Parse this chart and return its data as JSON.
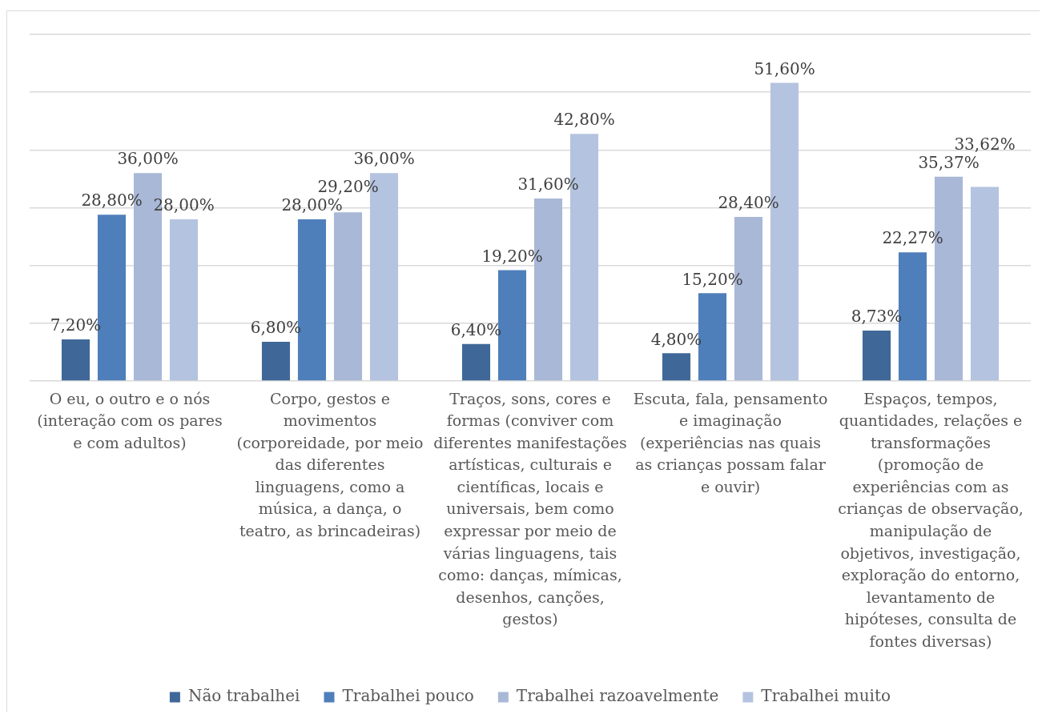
{
  "chart_data": {
    "type": "bar",
    "categories": [
      "O eu, o outro e o nós (interação com os pares e com adultos)",
      "Corpo, gestos e movimentos (corporeidade, por meio das diferentes linguagens, como a música, a dança, o teatro, as brincadeiras)",
      "Traços, sons, cores e formas (conviver com diferentes manifestações artísticas, culturais e científicas, locais e universais, bem como expressar por meio de várias linguagens, tais como: danças, mímicas, desenhos, canções, gestos)",
      "Escuta, fala, pensamento e imaginação (experiências nas quais as crianças possam falar e ouvir)",
      "Espaços, tempos, quantidades, relações e transformações (promoção de experiências com as crianças de observação, manipulação de objetivos, investigação, exploração do entorno, levantamento de hipóteses, consulta de fontes diversas)"
    ],
    "series": [
      {
        "name": "Não trabalhei",
        "color": "#3f6898",
        "values": [
          7.2,
          6.8,
          6.4,
          4.8,
          8.73
        ],
        "value_labels": [
          "7,20%",
          "6,80%",
          "6,40%",
          "4,80%",
          "8,73%"
        ]
      },
      {
        "name": "Trabalhei pouco",
        "color": "#4f7fbb",
        "values": [
          28.8,
          28.0,
          19.2,
          15.2,
          22.27
        ],
        "value_labels": [
          "28,80%",
          "28,00%",
          "19,20%",
          "15,20%",
          "22,27%"
        ]
      },
      {
        "name": "Trabalhei razoavelmente",
        "color": "#a9b8d7",
        "values": [
          36.0,
          29.2,
          31.6,
          28.4,
          35.37
        ],
        "value_labels": [
          "36,00%",
          "29,20%",
          "31,60%",
          "28,40%",
          "35,37%"
        ]
      },
      {
        "name": "Trabalhei muito",
        "color": "#b4c3df",
        "values": [
          28.0,
          36.0,
          42.8,
          51.6,
          33.62
        ],
        "value_labels": [
          "28,00%",
          "36,00%",
          "42,80%",
          "51,60%",
          "33,62%"
        ]
      }
    ],
    "ylim": [
      0,
      60
    ],
    "yticks": [
      {
        "value": 0,
        "label": null
      },
      {
        "value": 10,
        "label": null
      },
      {
        "value": 20,
        "label": null
      },
      {
        "value": 30,
        "label": null
      },
      {
        "value": 40,
        "label": null
      },
      {
        "value": 50,
        "label": null
      },
      {
        "value": 60,
        "label": null
      }
    ],
    "tick_labels": "x",
    "grid": "y",
    "legend": "bottom"
  }
}
